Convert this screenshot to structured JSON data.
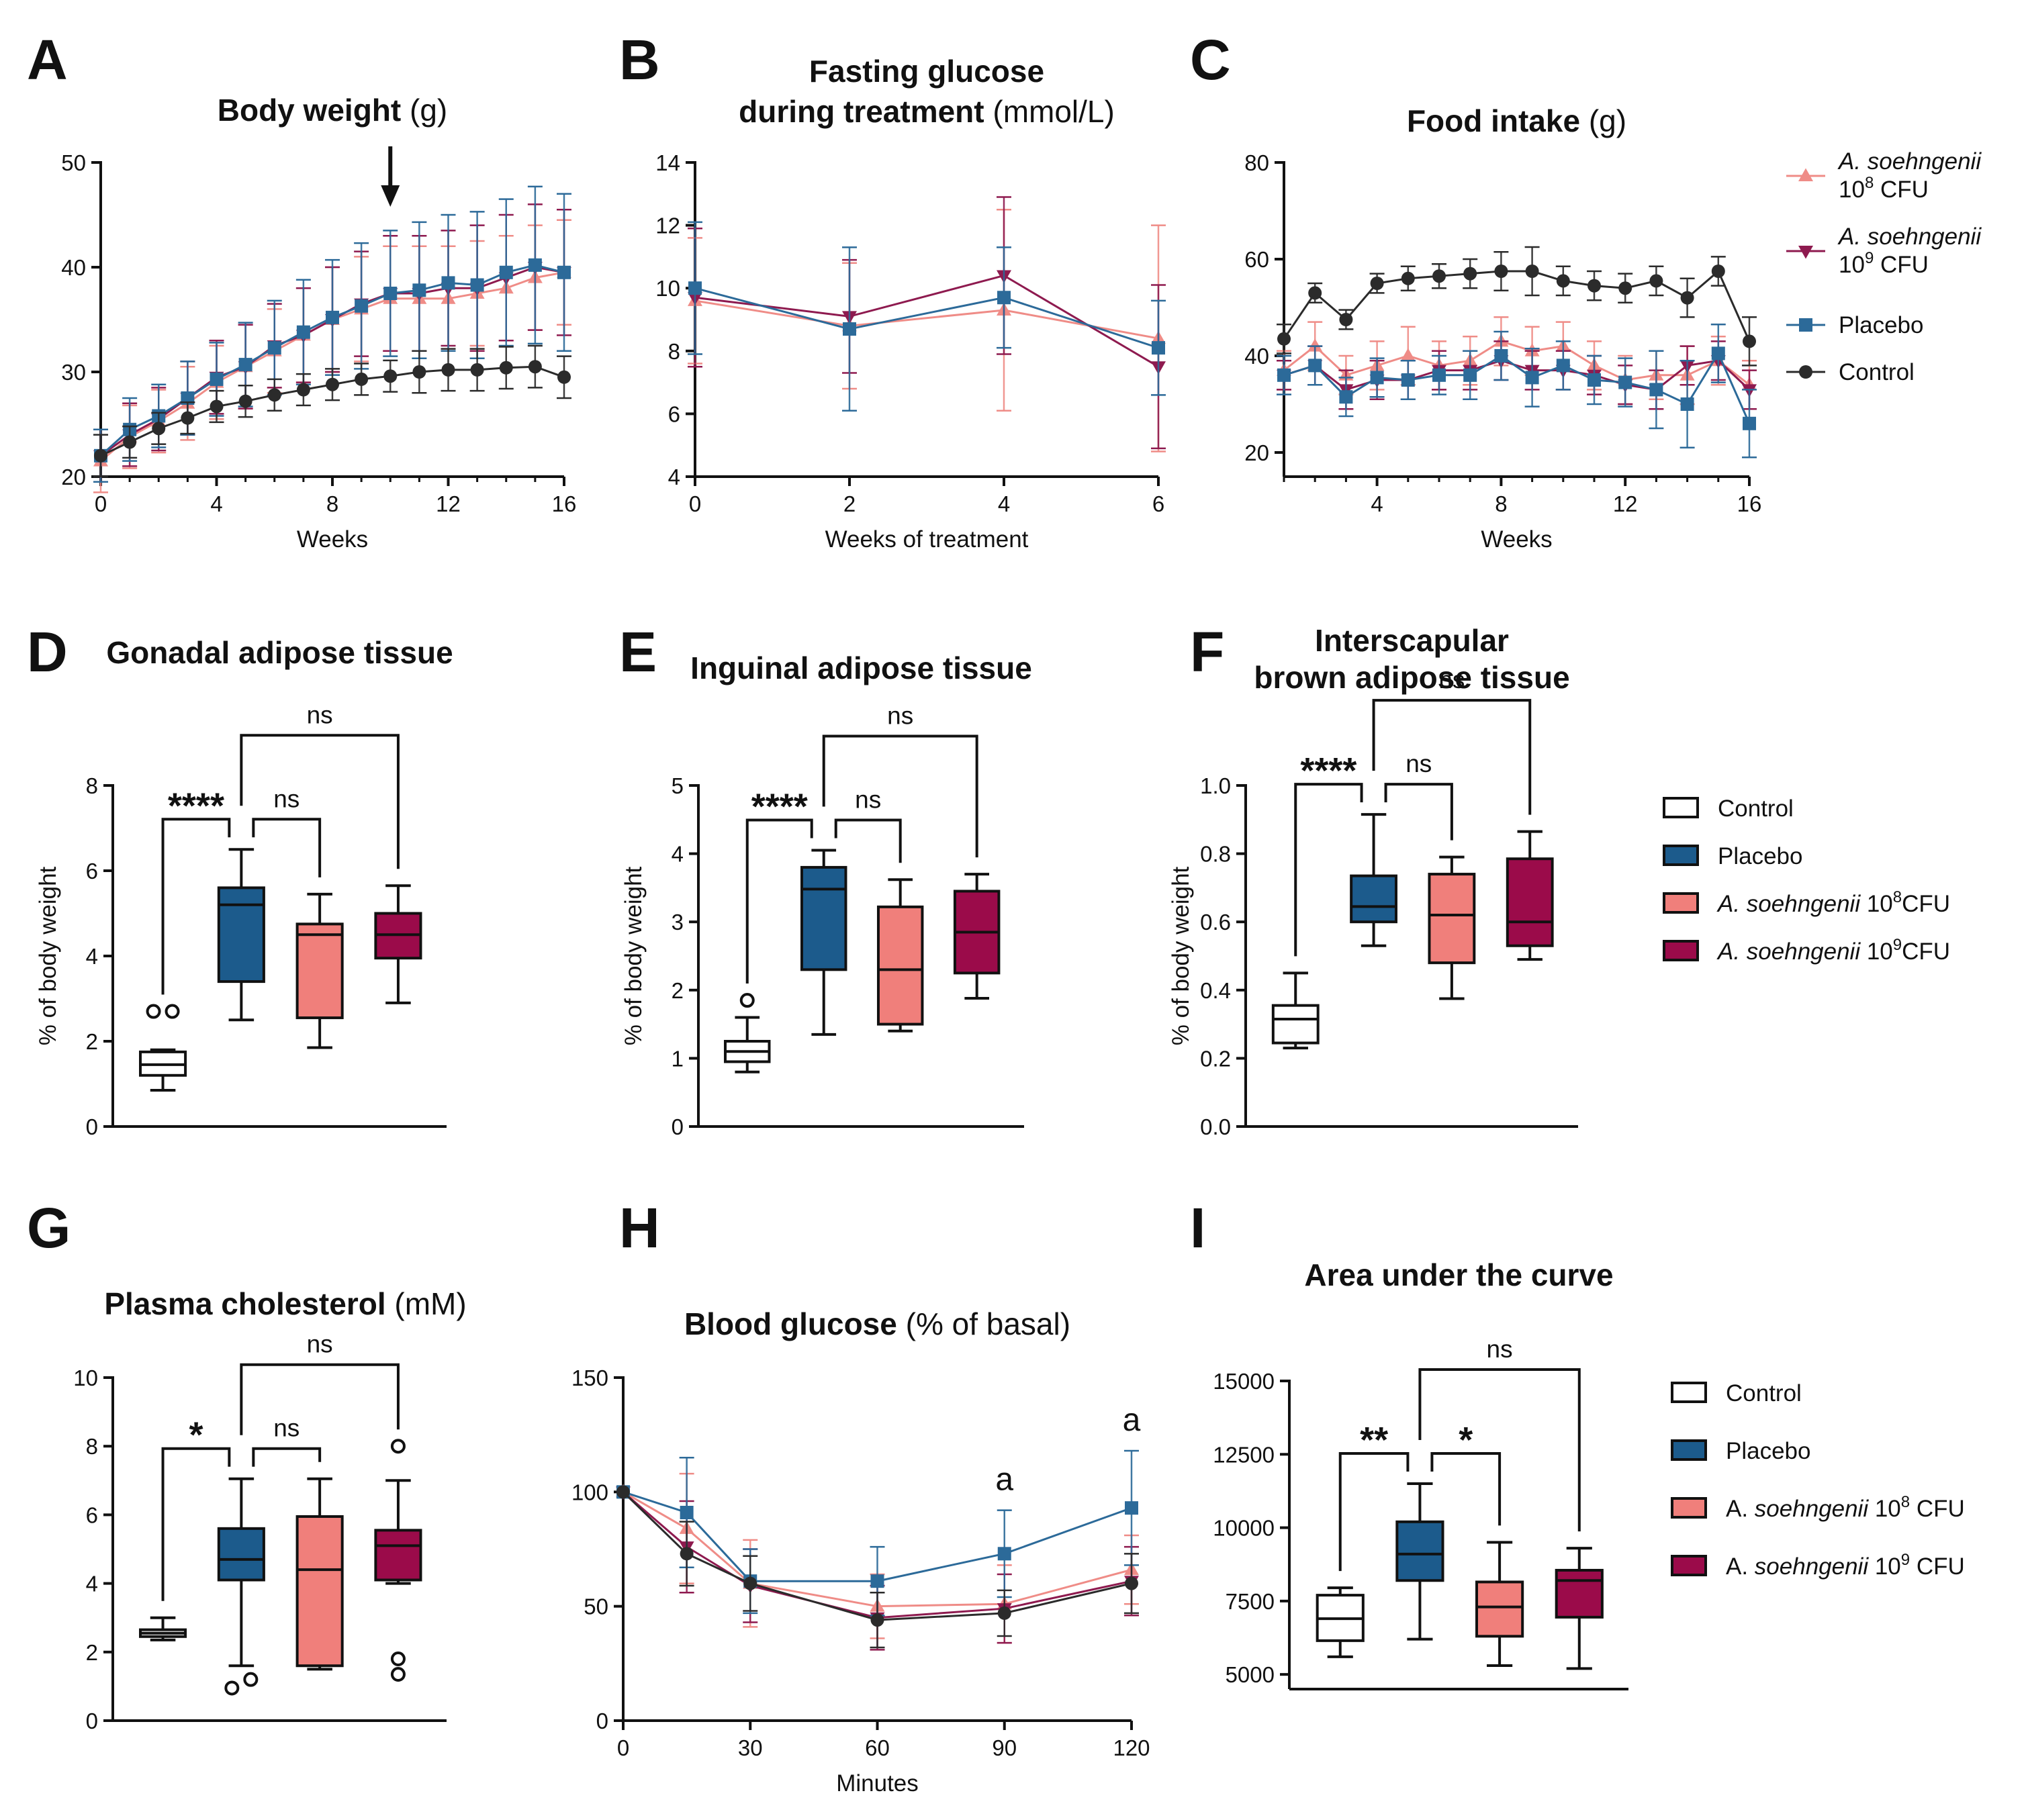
{
  "colors": {
    "control": "#2b2b2b",
    "placebo": "#1c5b8c",
    "a108": "#f07f7b",
    "a109": "#9b0b4a",
    "a108_line": "#ef8c87",
    "a109_line": "#8e1a4f",
    "placebo_line": "#2c6a99"
  },
  "legend_lines": [
    {
      "key": "a108",
      "name1": "A. soehngenii",
      "name2": "10",
      "sup": "8",
      "tail": " CFU",
      "marker": "triangle"
    },
    {
      "key": "a109",
      "name1": "A. soehngenii",
      "name2": "10",
      "sup": "9",
      "tail": " CFU",
      "marker": "triangle-down"
    },
    {
      "key": "placebo",
      "name": "Placebo",
      "marker": "square"
    },
    {
      "key": "control",
      "name": "Control",
      "marker": "circle"
    }
  ],
  "legend_boxes_1": [
    {
      "key": "control",
      "label": "Control"
    },
    {
      "key": "placebo",
      "label": "Placebo"
    },
    {
      "key": "a108",
      "italic": "A. soehngenii",
      "label": " 10",
      "sup": "8",
      "tail": "CFU"
    },
    {
      "key": "a109",
      "italic": "A. soehngenii",
      "label": " 10",
      "sup": "9",
      "tail": "CFU"
    }
  ],
  "legend_boxes_2": [
    {
      "key": "control",
      "label": "Control"
    },
    {
      "key": "placebo",
      "label": "Placebo"
    },
    {
      "key": "a108",
      "prefix": "A. ",
      "italic": "soehngenii",
      "label": " 10",
      "sup": "8",
      "tail": " CFU"
    },
    {
      "key": "a109",
      "prefix": "A. ",
      "italic": "soehngenii",
      "label": " 10",
      "sup": "9",
      "tail": " CFU"
    }
  ],
  "chart_data": [
    {
      "panel": "A",
      "type": "line",
      "title": "Body weight",
      "title_unit": " (g)",
      "xlabel": "Weeks",
      "ylabel": "",
      "xlim": [
        0,
        16
      ],
      "ylim": [
        20,
        50
      ],
      "xticks": [
        0,
        4,
        8,
        12,
        16
      ],
      "yticks": [
        20,
        30,
        40,
        50
      ],
      "annotation": "arrow at week 10",
      "arrow_week": 10,
      "x": [
        0,
        1,
        2,
        3,
        4,
        5,
        6,
        7,
        8,
        9,
        10,
        11,
        12,
        13,
        14,
        15,
        16
      ],
      "series": [
        {
          "key": "a108",
          "name": "A. soehngenii 10^8 CFU",
          "values": [
            21.5,
            23.8,
            25.3,
            27.0,
            29.0,
            30.5,
            32.0,
            33.5,
            35.0,
            36.0,
            37.0,
            37.0,
            37.0,
            37.5,
            38.0,
            39.0,
            39.5
          ],
          "err": [
            3,
            3,
            3,
            3.5,
            3.5,
            4,
            4,
            4.5,
            5,
            5,
            5,
            5,
            5,
            5,
            5,
            5,
            5
          ]
        },
        {
          "key": "a109",
          "name": "A. soehngenii 10^9 CFU",
          "values": [
            22.0,
            24.0,
            25.5,
            27.5,
            29.5,
            30.5,
            32.5,
            33.5,
            35.0,
            36.5,
            37.5,
            37.5,
            38.0,
            38.0,
            39.0,
            40.0,
            39.5
          ],
          "err": [
            2.5,
            3,
            3,
            3.5,
            3.5,
            4,
            4,
            4.5,
            5,
            5,
            5.5,
            5.5,
            5.5,
            6,
            6,
            6,
            6
          ]
        },
        {
          "key": "placebo",
          "name": "Placebo",
          "values": [
            22.0,
            24.5,
            25.8,
            27.5,
            29.3,
            30.7,
            32.3,
            33.8,
            35.2,
            36.3,
            37.5,
            37.8,
            38.5,
            38.3,
            39.5,
            40.2,
            39.5
          ],
          "err": [
            2.5,
            3,
            3,
            3.5,
            3.5,
            4,
            4.5,
            5,
            5.5,
            6,
            6,
            6.5,
            6.5,
            7,
            7,
            7.5,
            7.5
          ]
        },
        {
          "key": "control",
          "name": "Control",
          "values": [
            22.0,
            23.3,
            24.6,
            25.6,
            26.7,
            27.2,
            27.8,
            28.3,
            28.8,
            29.3,
            29.6,
            30.0,
            30.2,
            30.2,
            30.4,
            30.5,
            29.5
          ],
          "err": [
            2,
            1.5,
            1.5,
            1.5,
            1.5,
            1.5,
            1.5,
            1.5,
            1.5,
            1.5,
            1.5,
            2,
            2,
            2,
            2,
            2,
            2
          ]
        }
      ]
    },
    {
      "panel": "B",
      "type": "line",
      "title_line1": "Fasting glucose",
      "title_line2": "during treatment",
      "title_unit": " (mmol/L)",
      "xlabel": "Weeks of treatment",
      "ylabel": "",
      "xlim": [
        0,
        6
      ],
      "ylim": [
        4,
        14
      ],
      "xticks": [
        0,
        2,
        4,
        6
      ],
      "yticks": [
        4,
        6,
        8,
        10,
        12,
        14
      ],
      "x": [
        0,
        2,
        4,
        6
      ],
      "series": [
        {
          "key": "a108",
          "name": "A. soehngenii 10^8 CFU",
          "values": [
            9.6,
            8.8,
            9.3,
            8.4
          ],
          "err": [
            2.0,
            2.0,
            3.2,
            3.6
          ]
        },
        {
          "key": "a109",
          "name": "A. soehngenii 10^9 CFU",
          "values": [
            9.7,
            9.1,
            10.4,
            7.5
          ],
          "err": [
            2.2,
            1.8,
            2.5,
            2.6
          ]
        },
        {
          "key": "placebo",
          "name": "Placebo",
          "values": [
            10.0,
            8.7,
            9.7,
            8.1
          ],
          "err": [
            2.1,
            2.6,
            1.6,
            1.5
          ]
        }
      ]
    },
    {
      "panel": "C",
      "type": "line",
      "title": "Food intake",
      "title_unit": " (g)",
      "xlabel": "Weeks",
      "ylabel": "",
      "xlim": [
        1,
        16
      ],
      "ylim": [
        15,
        80
      ],
      "xticks": [
        4,
        8,
        12,
        16
      ],
      "yticks": [
        20,
        40,
        60,
        80
      ],
      "x": [
        1,
        2,
        3,
        4,
        5,
        6,
        7,
        8,
        9,
        10,
        11,
        12,
        13,
        14,
        15,
        16
      ],
      "series": [
        {
          "key": "a108",
          "name": "A. soehngenii 10^8 CFU",
          "values": [
            37,
            42,
            36,
            38,
            40,
            38,
            39,
            43,
            41,
            42,
            38,
            35,
            36,
            36,
            39,
            34
          ],
          "err": [
            4,
            5,
            4,
            5,
            6,
            5,
            5,
            5,
            5,
            5,
            5,
            5,
            5,
            6,
            5,
            5
          ]
        },
        {
          "key": "a109",
          "name": "A. soehngenii 10^9 CFU",
          "values": [
            36,
            38,
            33,
            35,
            35,
            37,
            37,
            39,
            37,
            37,
            36,
            34,
            33,
            38,
            39,
            33
          ],
          "err": [
            3,
            4,
            4,
            4,
            4,
            4,
            4,
            4,
            4,
            4,
            4,
            4,
            4,
            4,
            4,
            4
          ]
        },
        {
          "key": "placebo",
          "name": "Placebo",
          "values": [
            36,
            38,
            31.5,
            35.5,
            35,
            36,
            36,
            40,
            35.5,
            38,
            35,
            34.5,
            33,
            30,
            40.5,
            26
          ],
          "err": [
            4,
            4,
            4,
            4,
            4,
            4,
            5,
            5,
            6,
            5,
            5,
            5,
            8,
            9,
            6,
            7
          ]
        },
        {
          "key": "control",
          "name": "Control",
          "values": [
            43.5,
            53,
            47.5,
            55,
            56,
            56.5,
            57,
            57.5,
            57.5,
            55.5,
            54.5,
            54,
            55.5,
            52,
            57.5,
            43
          ],
          "err": [
            3,
            2,
            2,
            2,
            2.5,
            2.5,
            3,
            4,
            5,
            3,
            3,
            3,
            3,
            4,
            3,
            5
          ]
        }
      ]
    },
    {
      "panel": "D",
      "type": "box",
      "title": "Gonadal adipose tissue",
      "ylabel": "% of body weight",
      "ylim": [
        0,
        8
      ],
      "yticks": [
        0,
        2,
        4,
        6,
        8
      ],
      "groups": [
        {
          "key": "control",
          "min": 0.85,
          "q1": 1.2,
          "median": 1.45,
          "q3": 1.75,
          "max": 1.8,
          "outliers": [
            2.7,
            2.7
          ]
        },
        {
          "key": "placebo",
          "min": 2.5,
          "q1": 3.4,
          "median": 5.2,
          "q3": 5.6,
          "max": 6.5,
          "outliers": []
        },
        {
          "key": "a108",
          "min": 1.85,
          "q1": 2.55,
          "median": 4.5,
          "q3": 4.75,
          "max": 5.45,
          "outliers": []
        },
        {
          "key": "a109",
          "min": 2.9,
          "q1": 3.95,
          "median": 4.5,
          "q3": 5.0,
          "max": 5.65,
          "outliers": []
        }
      ],
      "comparisons": [
        {
          "from": 0,
          "to": 1,
          "label": "****",
          "level": 1
        },
        {
          "from": 1,
          "to": 2,
          "label": "ns",
          "level": 1
        },
        {
          "from": 1,
          "to": 3,
          "label": "ns",
          "level": 2
        }
      ]
    },
    {
      "panel": "E",
      "type": "box",
      "title": "Inguinal adipose tissue",
      "ylabel": "% of body weight",
      "ylim": [
        0,
        5
      ],
      "yticks": [
        0,
        1,
        2,
        3,
        4,
        5
      ],
      "groups": [
        {
          "key": "control",
          "min": 0.8,
          "q1": 0.95,
          "median": 1.1,
          "q3": 1.25,
          "max": 1.6,
          "outliers": [
            1.85
          ]
        },
        {
          "key": "placebo",
          "min": 1.35,
          "q1": 2.3,
          "median": 3.48,
          "q3": 3.8,
          "max": 4.05,
          "outliers": []
        },
        {
          "key": "a108",
          "min": 1.4,
          "q1": 1.5,
          "median": 2.3,
          "q3": 3.22,
          "max": 3.62,
          "outliers": []
        },
        {
          "key": "a109",
          "min": 1.88,
          "q1": 2.25,
          "median": 2.85,
          "q3": 3.45,
          "max": 3.7,
          "outliers": []
        }
      ],
      "comparisons": [
        {
          "from": 0,
          "to": 1,
          "label": "****",
          "level": 1
        },
        {
          "from": 1,
          "to": 2,
          "label": "ns",
          "level": 1
        },
        {
          "from": 1,
          "to": 3,
          "label": "ns",
          "level": 2
        }
      ]
    },
    {
      "panel": "F",
      "type": "box",
      "title_line1": "Interscapular",
      "title_line2": "brown adipose tissue",
      "ylabel": "% of body weight",
      "ylim": [
        0,
        1
      ],
      "yticks": [
        "0.0",
        "0.2",
        "0.4",
        "0.6",
        "0.8",
        "1.0"
      ],
      "groups": [
        {
          "key": "control",
          "min": 0.23,
          "q1": 0.245,
          "median": 0.315,
          "q3": 0.355,
          "max": 0.45,
          "outliers": []
        },
        {
          "key": "placebo",
          "min": 0.53,
          "q1": 0.6,
          "median": 0.645,
          "q3": 0.735,
          "max": 0.915,
          "outliers": []
        },
        {
          "key": "a108",
          "min": 0.375,
          "q1": 0.48,
          "median": 0.62,
          "q3": 0.74,
          "max": 0.79,
          "outliers": []
        },
        {
          "key": "a109",
          "min": 0.49,
          "q1": 0.53,
          "median": 0.6,
          "q3": 0.785,
          "max": 0.865,
          "outliers": []
        }
      ],
      "comparisons": [
        {
          "from": 0,
          "to": 1,
          "label": "****",
          "level": 1
        },
        {
          "from": 1,
          "to": 2,
          "label": "ns",
          "level": 1
        },
        {
          "from": 1,
          "to": 3,
          "label": "ns",
          "level": 2
        }
      ]
    },
    {
      "panel": "G",
      "type": "box",
      "title": "Plasma cholesterol",
      "title_unit": " (mM)",
      "ylabel": "",
      "ylim": [
        0,
        10
      ],
      "yticks": [
        0,
        2,
        4,
        6,
        8,
        10
      ],
      "groups": [
        {
          "key": "control",
          "min": 2.35,
          "q1": 2.45,
          "median": 2.55,
          "q3": 2.65,
          "max": 3.0,
          "outliers": []
        },
        {
          "key": "placebo",
          "min": 1.6,
          "q1": 4.1,
          "median": 4.7,
          "q3": 5.6,
          "max": 7.05,
          "outliers": [
            0.95,
            1.2
          ]
        },
        {
          "key": "a108",
          "min": 1.5,
          "q1": 1.6,
          "median": 4.4,
          "q3": 5.95,
          "max": 7.05,
          "outliers": []
        },
        {
          "key": "a109",
          "min": 4.0,
          "q1": 4.1,
          "median": 5.1,
          "q3": 5.55,
          "max": 7.0,
          "outliers": [
            8.0,
            1.8,
            1.35
          ]
        }
      ],
      "comparisons": [
        {
          "from": 0,
          "to": 1,
          "label": "*",
          "level": 1
        },
        {
          "from": 1,
          "to": 2,
          "label": "ns",
          "level": 1
        },
        {
          "from": 1,
          "to": 3,
          "label": "ns",
          "level": 2
        }
      ]
    },
    {
      "panel": "H",
      "type": "line",
      "title": "Blood glucose",
      "title_unit": " (% of basal)",
      "xlabel": "Minutes",
      "ylabel": "",
      "xlim": [
        0,
        120
      ],
      "ylim": [
        0,
        150
      ],
      "xticks": [
        0,
        30,
        60,
        90,
        120
      ],
      "yticks": [
        0,
        50,
        100,
        150
      ],
      "x": [
        0,
        15,
        30,
        60,
        90,
        120
      ],
      "annotations": [
        {
          "x": 90,
          "text": "a"
        },
        {
          "x": 120,
          "text": "a"
        }
      ],
      "series": [
        {
          "key": "a108",
          "name": "A. soehngenii 10^8 CFU",
          "values": [
            100,
            84,
            60,
            50,
            51,
            66
          ],
          "err": [
            0,
            24,
            19,
            14,
            17,
            15
          ]
        },
        {
          "key": "a109",
          "name": "A. soehngenii 10^9 CFU",
          "values": [
            100,
            76,
            59,
            45,
            49,
            61
          ],
          "err": [
            0,
            20,
            16,
            14,
            15,
            15
          ]
        },
        {
          "key": "placebo",
          "name": "Placebo",
          "values": [
            100,
            91,
            61,
            61,
            73,
            93
          ],
          "err": [
            0,
            24,
            14,
            15,
            19,
            25
          ]
        },
        {
          "key": "control",
          "name": "Control",
          "values": [
            100,
            73,
            60,
            44,
            47,
            60
          ],
          "err": [
            0,
            14,
            12,
            12,
            10,
            13
          ]
        }
      ]
    },
    {
      "panel": "I",
      "type": "box",
      "title": "Area under the curve",
      "ylabel": "",
      "ylim": [
        4500,
        15000
      ],
      "yticks": [
        5000,
        7500,
        10000,
        12500,
        15000
      ],
      "groups": [
        {
          "key": "control",
          "min": 5600,
          "q1": 6150,
          "median": 6900,
          "q3": 7700,
          "max": 7950,
          "outliers": []
        },
        {
          "key": "placebo",
          "min": 6200,
          "q1": 8200,
          "median": 9100,
          "q3": 10200,
          "max": 11500,
          "outliers": []
        },
        {
          "key": "a108",
          "min": 5300,
          "q1": 6300,
          "median": 7300,
          "q3": 8150,
          "max": 9500,
          "outliers": []
        },
        {
          "key": "a109",
          "min": 5200,
          "q1": 6950,
          "median": 8200,
          "q3": 8550,
          "max": 9300,
          "outliers": []
        }
      ],
      "comparisons": [
        {
          "from": 0,
          "to": 1,
          "label": "**",
          "level": 1
        },
        {
          "from": 1,
          "to": 2,
          "label": "*",
          "level": 1
        },
        {
          "from": 1,
          "to": 3,
          "label": "ns",
          "level": 2
        }
      ]
    }
  ]
}
